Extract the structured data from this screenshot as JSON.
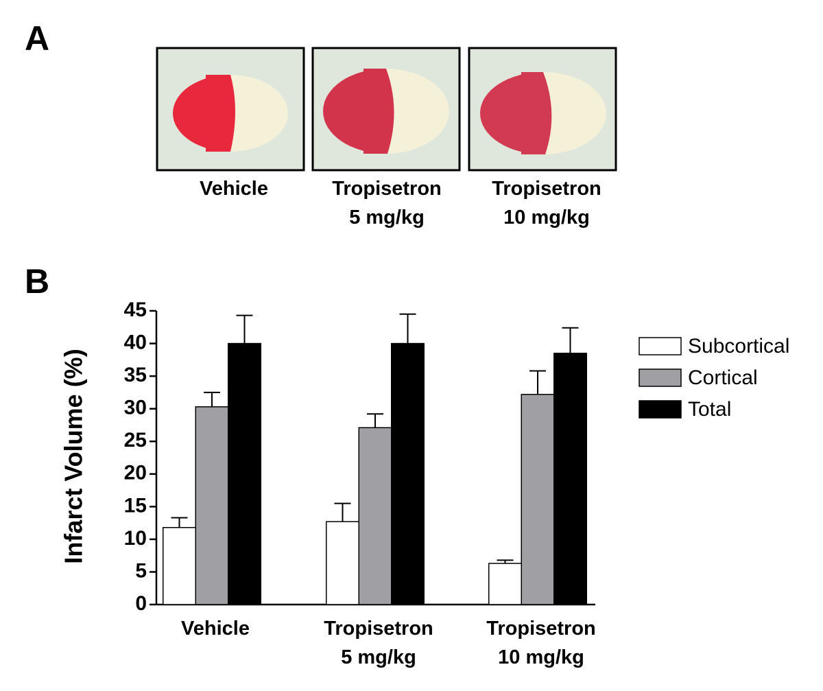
{
  "panels": {
    "a": {
      "label": "A",
      "captions": [
        "Vehicle",
        "Tropisetron\n5 mg/kg",
        "Tropisetron\n10 mg/kg"
      ]
    },
    "b": {
      "label": "B"
    }
  },
  "chart_data": {
    "type": "bar",
    "y_label": "Infarct Volume (%)",
    "categories": [
      "Vehicle",
      "Tropisetron\n5 mg/kg",
      "Tropisetron\n10 mg/kg"
    ],
    "series": [
      {
        "name": "Subcortical",
        "color": "#ffffff",
        "values": [
          11.8,
          12.7,
          6.3
        ],
        "errors": [
          1.5,
          2.8,
          0.5
        ]
      },
      {
        "name": "Cortical",
        "color": "#a0a0a4",
        "values": [
          30.3,
          27.1,
          32.2
        ],
        "errors": [
          2.2,
          2.1,
          3.6
        ]
      },
      {
        "name": "Total",
        "color": "#000000",
        "values": [
          40.0,
          40.0,
          38.5
        ],
        "errors": [
          4.3,
          4.5,
          3.9
        ]
      }
    ],
    "ylim": [
      0,
      45
    ],
    "yticks": [
      0,
      5,
      10,
      15,
      20,
      25,
      30,
      35,
      40,
      45
    ],
    "grid": false,
    "legend": "right"
  }
}
